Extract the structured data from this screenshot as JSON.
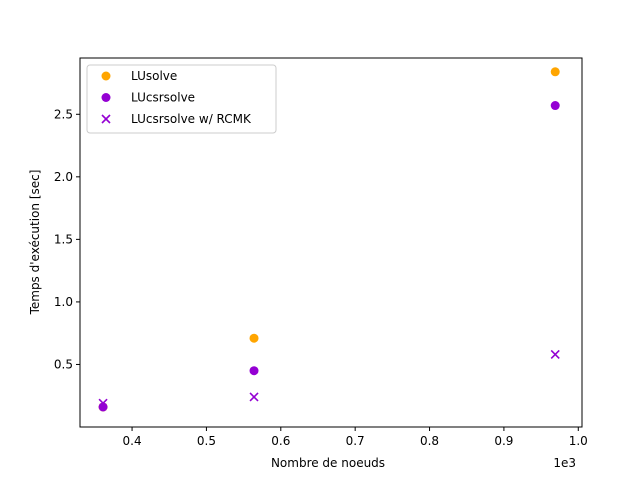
{
  "chart_data": {
    "type": "scatter",
    "title": "",
    "xlabel": "Nombre de noeuds",
    "ylabel": "Temps d'exécution [sec]",
    "x_offset_label": "1e3",
    "xlim": [
      0.33,
      1.005
    ],
    "ylim": [
      0.0,
      2.95
    ],
    "xticks": [
      0.4,
      0.5,
      0.6,
      0.7,
      0.8,
      0.9,
      1.0
    ],
    "xtick_labels": [
      "0.4",
      "0.5",
      "0.6",
      "0.7",
      "0.8",
      "0.9",
      "1.0"
    ],
    "yticks": [
      0.5,
      1.0,
      1.5,
      2.0,
      2.5
    ],
    "ytick_labels": [
      "0.5",
      "1.0",
      "1.5",
      "2.0",
      "2.5"
    ],
    "grid": false,
    "legend_position": "top-left",
    "series": [
      {
        "name": "LUsolve",
        "marker": "circle",
        "color": "#ffa500",
        "x": [
          0.361,
          0.564,
          0.969
        ],
        "y": [
          0.16,
          0.71,
          2.84
        ]
      },
      {
        "name": "LUcsrsolve",
        "marker": "circle",
        "color": "#9400d3",
        "x": [
          0.361,
          0.564,
          0.969
        ],
        "y": [
          0.16,
          0.45,
          2.57
        ]
      },
      {
        "name": "LUcsrsolve w/ RCMK",
        "marker": "x",
        "color": "#9400d3",
        "x": [
          0.361,
          0.564,
          0.969
        ],
        "y": [
          0.19,
          0.24,
          0.58
        ]
      }
    ]
  }
}
